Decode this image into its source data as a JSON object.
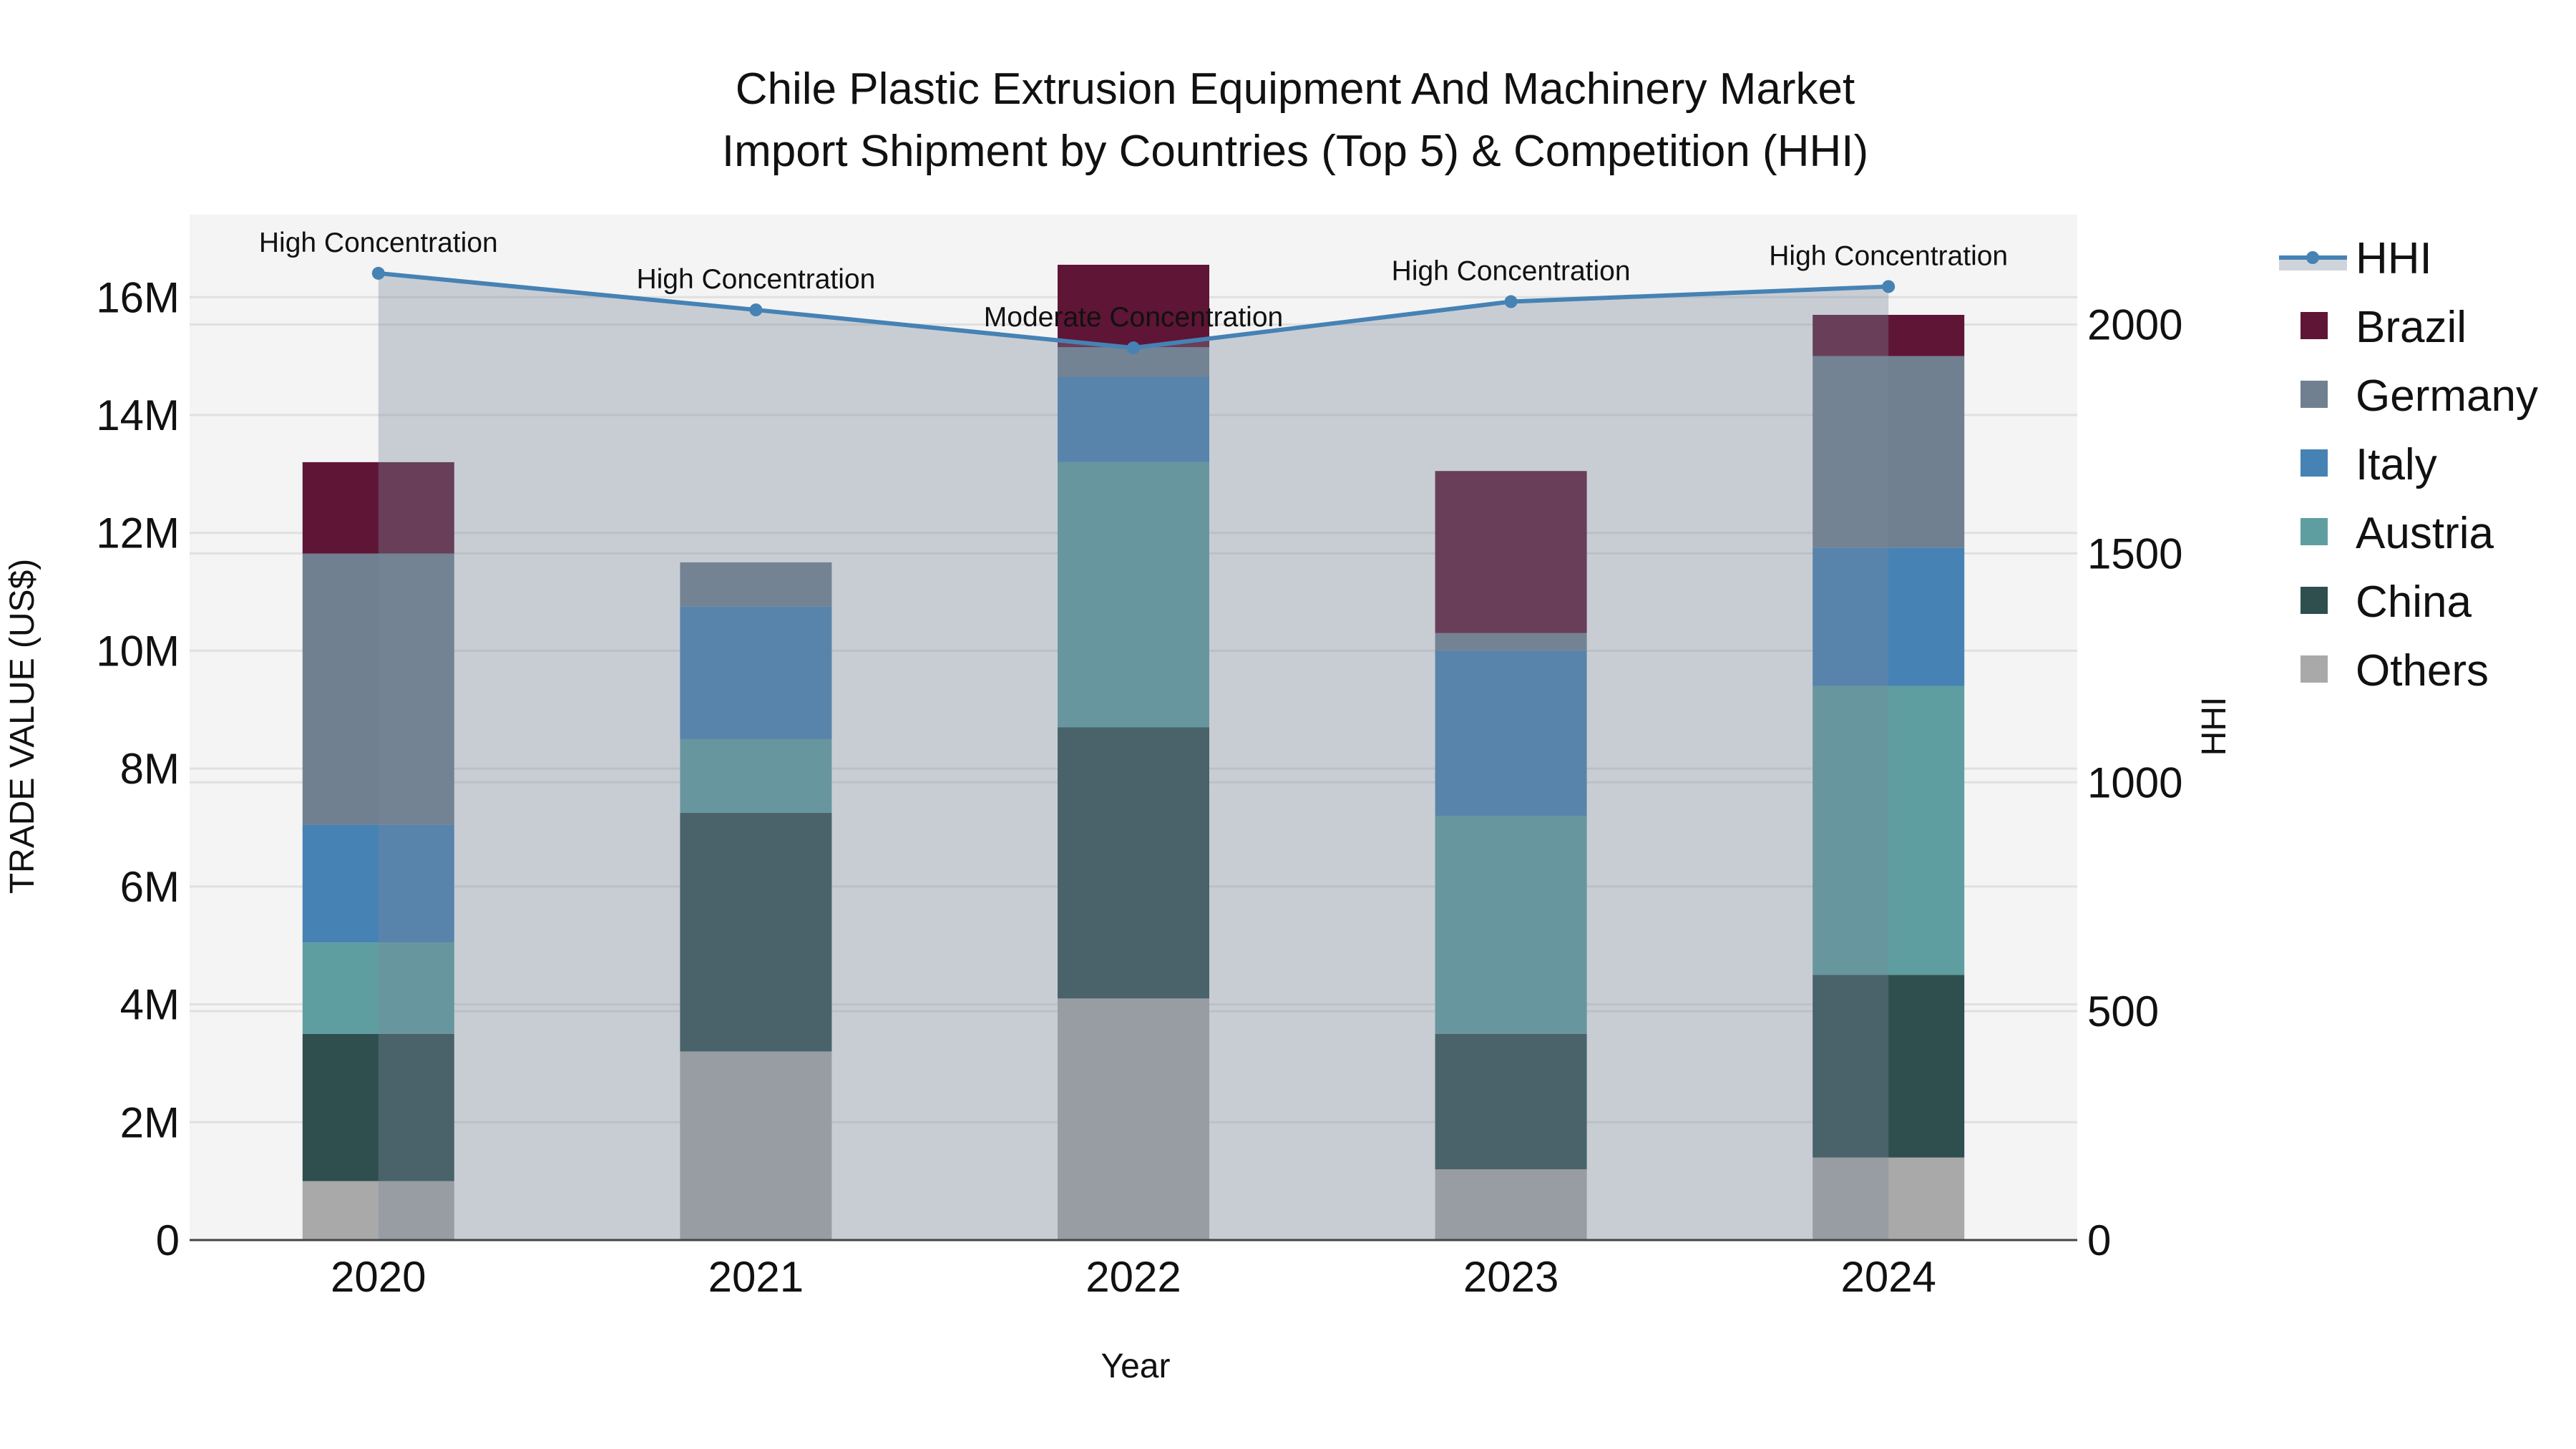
{
  "chart_data": {
    "type": "bar",
    "stacked": true,
    "title": [
      "Chile Plastic Extrusion Equipment And Machinery Market",
      "Import Shipment by Countries (Top 5) & Competition (HHI)"
    ],
    "xlabel": "Year",
    "ylabel": "TRADE VALUE (US$)",
    "y2label": "HHI",
    "categories": [
      "2020",
      "2021",
      "2022",
      "2023",
      "2024"
    ],
    "ylim": [
      0,
      17400000
    ],
    "y2lim": [
      0,
      2240
    ],
    "yticks": [
      0,
      2000000,
      4000000,
      6000000,
      8000000,
      10000000,
      12000000,
      14000000,
      16000000
    ],
    "ytick_labels": [
      "0",
      "2M",
      "4M",
      "6M",
      "8M",
      "10M",
      "12M",
      "14M",
      "16M"
    ],
    "y2ticks": [
      0,
      500,
      1000,
      1500,
      2000
    ],
    "y2tick_labels": [
      "0",
      "500",
      "1000",
      "1500",
      "2000"
    ],
    "grid": true,
    "legend_position": "right",
    "series": [
      {
        "name": "Others",
        "color": "#a9a9a9",
        "values": [
          1000000,
          3200000,
          4100000,
          1200000,
          1400000
        ]
      },
      {
        "name": "China",
        "color": "#2f4f4f",
        "values": [
          2500000,
          4050000,
          4600000,
          2300000,
          3100000
        ]
      },
      {
        "name": "Austria",
        "color": "#5f9ea0",
        "values": [
          1550000,
          1250000,
          4500000,
          3700000,
          4900000
        ]
      },
      {
        "name": "Italy",
        "color": "#4682b4",
        "values": [
          2000000,
          2250000,
          1450000,
          2800000,
          2350000
        ]
      },
      {
        "name": "Germany",
        "color": "#708090",
        "values": [
          4600000,
          750000,
          500000,
          300000,
          3250000
        ]
      },
      {
        "name": "Brazil",
        "color": "#5f1535",
        "values": [
          1550000,
          0,
          1400000,
          2750000,
          700000
        ]
      }
    ],
    "line": {
      "name": "HHI",
      "color": "#4682b4",
      "axis": "y2",
      "values": [
        2112,
        2032,
        1949,
        2050,
        2083
      ],
      "annotations": [
        "High Concentration",
        "High Concentration",
        "Moderate Concentration",
        "High Concentration",
        "High Concentration"
      ]
    },
    "legend_order": [
      "HHI",
      "Brazil",
      "Germany",
      "Italy",
      "Austria",
      "China",
      "Others"
    ]
  }
}
